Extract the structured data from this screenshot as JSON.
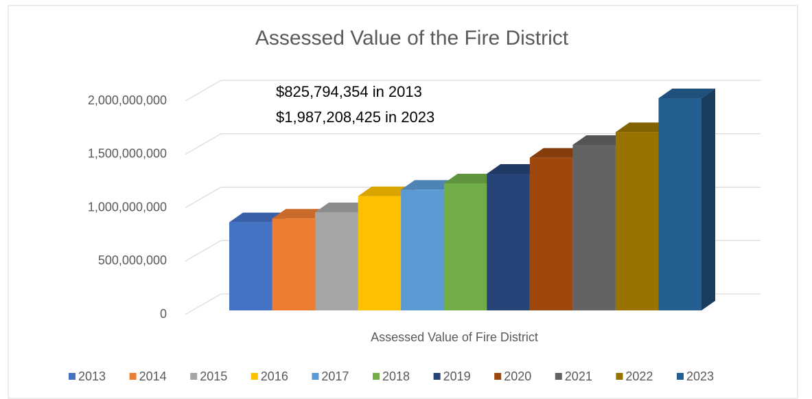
{
  "chart_data": {
    "type": "bar3d",
    "title": "Assessed Value of the Fire District",
    "annotations": [
      "$825,794,354 in 2013",
      "$1,987,208,425 in 2023"
    ],
    "categories": [
      "Assessed Value of Fire District"
    ],
    "series": [
      {
        "name": "2013",
        "color": "#4472c4",
        "values": [
          825794354
        ]
      },
      {
        "name": "2014",
        "color": "#ed7d31",
        "values": [
          860000000
        ]
      },
      {
        "name": "2015",
        "color": "#a5a5a5",
        "values": [
          920000000
        ]
      },
      {
        "name": "2016",
        "color": "#ffc000",
        "values": [
          1070000000
        ]
      },
      {
        "name": "2017",
        "color": "#5b9bd5",
        "values": [
          1130000000
        ]
      },
      {
        "name": "2018",
        "color": "#70ad47",
        "values": [
          1190000000
        ]
      },
      {
        "name": "2019",
        "color": "#264478",
        "values": [
          1280000000
        ]
      },
      {
        "name": "2020",
        "color": "#9e480e",
        "values": [
          1430000000
        ]
      },
      {
        "name": "2021",
        "color": "#636363",
        "values": [
          1550000000
        ]
      },
      {
        "name": "2022",
        "color": "#997300",
        "values": [
          1670000000
        ]
      },
      {
        "name": "2023",
        "color": "#255e91",
        "values": [
          1987208425
        ]
      }
    ],
    "ylim": [
      0,
      2000000000
    ],
    "yticks": [
      0,
      {
        "value": 500000000,
        "label": "500,000,000"
      },
      {
        "value": 1000000000,
        "label": "1,000,000,000"
      },
      {
        "value": 1500000000,
        "label": "1,500,000,000"
      },
      {
        "value": 2000000000,
        "label": "2,000,000,000"
      }
    ],
    "grid": true,
    "legend": "bottom"
  }
}
